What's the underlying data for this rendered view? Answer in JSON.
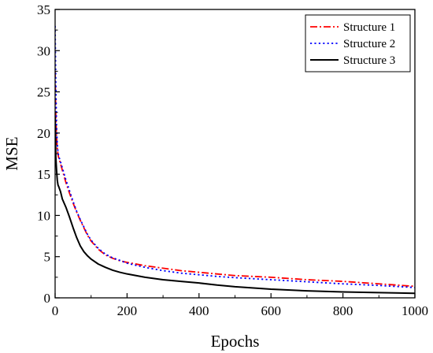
{
  "chart_data": {
    "type": "line",
    "title": "",
    "xlabel": "Epochs",
    "ylabel": "MSE",
    "xlim": [
      0,
      1000
    ],
    "ylim": [
      0,
      35
    ],
    "x_ticks": [
      0,
      200,
      400,
      600,
      800,
      1000
    ],
    "y_ticks": [
      0,
      5,
      10,
      15,
      20,
      25,
      30,
      35
    ],
    "grid": false,
    "legend_position": "top-right",
    "series": [
      {
        "name": "Structure 1",
        "color": "#ff0000",
        "line_style": "dash-dot",
        "x": [
          0,
          2,
          4,
          6,
          8,
          10,
          15,
          20,
          30,
          40,
          50,
          60,
          70,
          80,
          90,
          100,
          120,
          140,
          160,
          180,
          200,
          250,
          300,
          350,
          400,
          450,
          500,
          600,
          700,
          800,
          900,
          1000
        ],
        "y": [
          27.5,
          22,
          19.5,
          18.2,
          17.4,
          17,
          16.3,
          15.5,
          14,
          12.7,
          11.5,
          10.4,
          9.4,
          8.5,
          7.6,
          6.9,
          5.9,
          5.2,
          4.8,
          4.5,
          4.3,
          3.9,
          3.6,
          3.3,
          3.1,
          2.9,
          2.7,
          2.5,
          2.2,
          2.0,
          1.7,
          1.4
        ]
      },
      {
        "name": "Structure 2",
        "color": "#0000ff",
        "line_style": "dotted",
        "x": [
          0,
          2,
          4,
          6,
          8,
          10,
          15,
          20,
          30,
          40,
          50,
          60,
          70,
          80,
          90,
          100,
          120,
          140,
          160,
          180,
          200,
          250,
          300,
          350,
          400,
          450,
          500,
          600,
          700,
          800,
          900,
          1000
        ],
        "y": [
          33,
          26,
          21,
          18.7,
          17.7,
          17.2,
          16.5,
          15.8,
          14.3,
          13,
          11.7,
          10.5,
          9.5,
          8.6,
          7.7,
          7.0,
          6.0,
          5.3,
          4.85,
          4.55,
          4.2,
          3.7,
          3.3,
          3.0,
          2.8,
          2.6,
          2.45,
          2.2,
          1.95,
          1.7,
          1.5,
          1.25
        ]
      },
      {
        "name": "Structure 3",
        "color": "#000000",
        "line_style": "solid",
        "x": [
          0,
          2,
          4,
          6,
          8,
          10,
          15,
          20,
          25,
          30,
          40,
          50,
          60,
          70,
          80,
          90,
          100,
          120,
          140,
          160,
          180,
          200,
          250,
          300,
          350,
          400,
          450,
          500,
          600,
          700,
          800,
          900,
          1000
        ],
        "y": [
          22,
          17,
          15.5,
          14.3,
          13.7,
          13.5,
          12.9,
          12,
          11.5,
          11,
          9.8,
          8.5,
          7.3,
          6.3,
          5.6,
          5.1,
          4.7,
          4.1,
          3.7,
          3.35,
          3.1,
          2.9,
          2.5,
          2.2,
          2.0,
          1.8,
          1.55,
          1.35,
          1.05,
          0.85,
          0.72,
          0.63,
          0.55
        ]
      }
    ]
  }
}
